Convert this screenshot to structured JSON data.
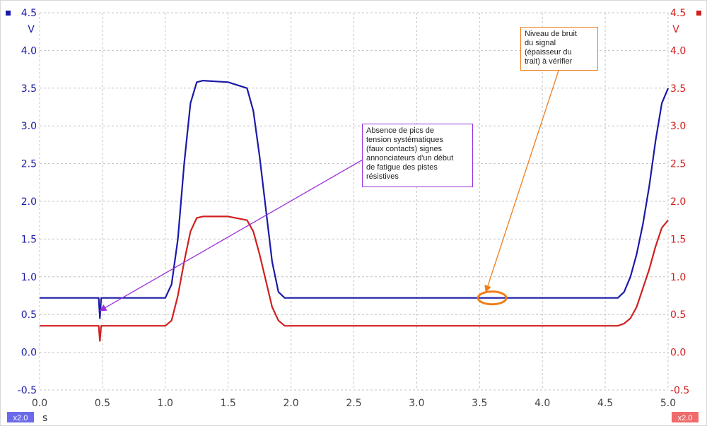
{
  "chart_data": {
    "type": "line",
    "title": "",
    "xlim": [
      0,
      5
    ],
    "grid": true,
    "x_ticks": [
      "0.0",
      "0.5",
      "1.0",
      "1.5",
      "2.0",
      "2.5",
      "3.0",
      "3.5",
      "4.0",
      "4.5",
      "5.0"
    ],
    "x_unit": "s",
    "left_axis": {
      "unit": "V",
      "ylim": [
        -0.5,
        4.5
      ],
      "ticks": [
        "4.5",
        "4.0",
        "3.5",
        "3.0",
        "2.5",
        "2.0",
        "1.5",
        "1.0",
        "0.5",
        "0.0",
        "-0.5"
      ],
      "color": "#1a1aa8",
      "zoom_badge": "x2.0"
    },
    "right_axis": {
      "unit": "V",
      "ylim": [
        -0.5,
        4.5
      ],
      "ticks": [
        "4.5",
        "4.0",
        "3.5",
        "3.0",
        "2.5",
        "2.0",
        "1.5",
        "1.0",
        "0.5",
        "0.0",
        "-0.5"
      ],
      "color": "#d01f1f",
      "zoom_badge": "x2.0"
    },
    "series": [
      {
        "color": "#1a1aa8",
        "x": [
          0.0,
          0.47,
          0.48,
          0.49,
          1.0,
          1.05,
          1.1,
          1.15,
          1.2,
          1.25,
          1.3,
          1.5,
          1.65,
          1.7,
          1.75,
          1.8,
          1.85,
          1.9,
          1.95,
          3.5,
          4.6,
          4.65,
          4.7,
          4.75,
          4.8,
          4.85,
          4.9,
          4.95,
          5.0
        ],
        "y": [
          0.72,
          0.72,
          0.45,
          0.72,
          0.72,
          0.9,
          1.5,
          2.5,
          3.3,
          3.58,
          3.6,
          3.58,
          3.5,
          3.2,
          2.6,
          1.9,
          1.2,
          0.8,
          0.72,
          0.72,
          0.72,
          0.8,
          1.0,
          1.3,
          1.7,
          2.2,
          2.8,
          3.3,
          3.5
        ]
      },
      {
        "color": "#d01f1f",
        "x": [
          0.0,
          0.47,
          0.48,
          0.49,
          1.0,
          1.05,
          1.1,
          1.15,
          1.2,
          1.25,
          1.3,
          1.5,
          1.65,
          1.7,
          1.75,
          1.8,
          1.85,
          1.9,
          1.95,
          3.5,
          4.6,
          4.65,
          4.7,
          4.75,
          4.8,
          4.85,
          4.9,
          4.95,
          5.0
        ],
        "y": [
          0.35,
          0.35,
          0.15,
          0.35,
          0.35,
          0.42,
          0.75,
          1.2,
          1.6,
          1.78,
          1.8,
          1.8,
          1.75,
          1.6,
          1.3,
          0.95,
          0.6,
          0.42,
          0.35,
          0.35,
          0.35,
          0.38,
          0.45,
          0.6,
          0.85,
          1.1,
          1.4,
          1.65,
          1.75
        ]
      }
    ],
    "annotations": [
      {
        "lines": [
          "Absence de pics de",
          "tension systématiques",
          "(faux contacts) signes",
          "annonciateurs d'un début",
          "de fatigue des pistes",
          "résistives"
        ],
        "color": "#9b30d9",
        "arrow_to": [
          0.48,
          0.55
        ]
      },
      {
        "lines": [
          "Niveau de bruit",
          "du signal",
          "(épaisseur du",
          "trait) à vérifier"
        ],
        "color": "#f07d1a",
        "arrow_to": [
          3.55,
          0.8
        ],
        "ellipse_center": [
          3.6,
          0.72
        ]
      }
    ]
  }
}
